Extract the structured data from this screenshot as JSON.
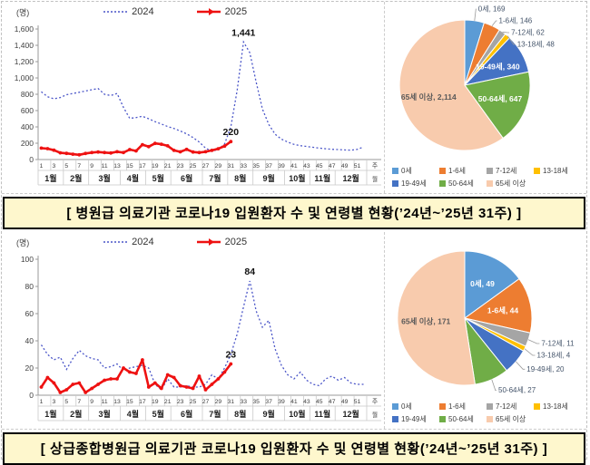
{
  "panels": [
    {
      "caption": "[ 병원급 의료기관 코로나19 입원환자 수 및 연령별 현황(’24년~’25년 31주) ]"
    },
    {
      "caption": "[ 상급종합병원급 의료기관 코로나19 입원환자 수 및 연령별 현황(’24년~’25년 31주) ]"
    }
  ],
  "chart_data": [
    {
      "type": "line",
      "title": "병원급 의료기관 코로나19 입원환자 수",
      "unit_label": "(명)",
      "week_axis_suffix": "주",
      "month_axis_suffix": "월",
      "ylim": [
        0,
        1600
      ],
      "yticks": [
        0,
        200,
        400,
        600,
        800,
        1000,
        1200,
        1400,
        1600
      ],
      "week_ticks": [
        1,
        3,
        5,
        7,
        9,
        11,
        13,
        15,
        17,
        19,
        21,
        23,
        25,
        27,
        29,
        31,
        33,
        35,
        37,
        39,
        41,
        43,
        45,
        47,
        49,
        51
      ],
      "months": [
        "1월",
        "2월",
        "3월",
        "4월",
        "5월",
        "6월",
        "7월",
        "8월",
        "9월",
        "10월",
        "11월",
        "12월"
      ],
      "weeks_per_month": [
        4,
        4,
        5,
        4,
        4,
        5,
        4,
        4,
        5,
        4,
        4,
        5
      ],
      "grid": false,
      "legend_position": "top",
      "series": [
        {
          "name": "2024",
          "color": "#4A55C8",
          "style": "dotted",
          "values": [
            830,
            770,
            745,
            760,
            795,
            810,
            825,
            840,
            855,
            870,
            800,
            785,
            810,
            640,
            505,
            515,
            530,
            500,
            465,
            435,
            405,
            380,
            350,
            315,
            270,
            215,
            140,
            100,
            125,
            190,
            400,
            850,
            1441,
            1310,
            950,
            620,
            430,
            310,
            250,
            215,
            185,
            170,
            160,
            150,
            140,
            132,
            126,
            122,
            118,
            115,
            125,
            155
          ]
        },
        {
          "name": "2025",
          "color": "#EE1111",
          "style": "solid",
          "values": [
            140,
            133,
            115,
            82,
            76,
            66,
            58,
            74,
            86,
            92,
            86,
            80,
            96,
            86,
            122,
            106,
            182,
            158,
            198,
            188,
            168,
            112,
            94,
            124,
            92,
            86,
            96,
            112,
            132,
            164,
            220
          ]
        }
      ],
      "annotations": [
        {
          "series": 0,
          "week": 33,
          "value": 1441,
          "text": "1,441"
        },
        {
          "series": 1,
          "week": 31,
          "value": 220,
          "text": "220"
        }
      ]
    },
    {
      "type": "pie",
      "title": "병원급 의료기관 연령별 현황",
      "legend_position": "bottom",
      "slices": [
        {
          "label": "0세",
          "value": 169,
          "color": "#5B9BD5",
          "label_inside": false,
          "label_color": "#44546A"
        },
        {
          "label": "1-6세",
          "value": 146,
          "color": "#ED7D31",
          "label_inside": false,
          "label_color": "#44546A"
        },
        {
          "label": "7-12세",
          "value": 62,
          "color": "#A5A5A5",
          "label_inside": false,
          "label_color": "#44546A"
        },
        {
          "label": "13-18세",
          "value": 48,
          "color": "#FFC000",
          "label_inside": false,
          "label_color": "#44546A"
        },
        {
          "label": "19-49세",
          "value": 340,
          "color": "#4472C4",
          "label_inside": true,
          "label_color": "#FFFFFF"
        },
        {
          "label": "50-64세",
          "value": 647,
          "color": "#70AD47",
          "label_inside": true,
          "label_color": "#FFFFFF"
        },
        {
          "label": "65세 이상",
          "value": 2114,
          "color": "#F8CBAD",
          "label_inside": true,
          "label_color": "#595959"
        }
      ]
    },
    {
      "type": "line",
      "title": "상급종합병원급 의료기관 코로나19 입원환자 수",
      "unit_label": "(명)",
      "week_axis_suffix": "주",
      "month_axis_suffix": "월",
      "ylim": [
        0,
        100
      ],
      "yticks": [
        0,
        20,
        40,
        60,
        80,
        100
      ],
      "week_ticks": [
        1,
        3,
        5,
        7,
        9,
        11,
        13,
        15,
        17,
        19,
        21,
        23,
        25,
        27,
        29,
        31,
        33,
        35,
        37,
        39,
        41,
        43,
        45,
        47,
        49,
        51
      ],
      "months": [
        "1월",
        "2월",
        "3월",
        "4월",
        "5월",
        "6월",
        "7월",
        "8월",
        "9월",
        "10월",
        "11월",
        "12월"
      ],
      "weeks_per_month": [
        4,
        4,
        5,
        4,
        4,
        5,
        4,
        4,
        5,
        4,
        4,
        5
      ],
      "grid": false,
      "legend_position": "top",
      "series": [
        {
          "name": "2024",
          "color": "#4A55C8",
          "style": "dotted",
          "values": [
            37,
            30,
            26,
            28,
            19,
            27,
            33,
            29,
            27,
            26,
            20,
            21,
            23,
            18,
            20,
            21,
            22,
            20,
            8,
            4,
            12,
            6,
            6,
            7,
            6,
            6,
            8,
            15,
            12,
            20,
            30,
            45,
            65,
            84,
            62,
            50,
            55,
            34,
            22,
            15,
            12,
            17,
            11,
            8,
            7,
            12,
            14,
            11,
            13,
            9,
            8,
            8
          ]
        },
        {
          "name": "2025",
          "color": "#EE1111",
          "style": "solid",
          "values": [
            6,
            13,
            9,
            2,
            4,
            8,
            9,
            2,
            5,
            8,
            11,
            12,
            12,
            20,
            17,
            16,
            26,
            6,
            9,
            5,
            15,
            13,
            7,
            6,
            5,
            14,
            4,
            8,
            12,
            17,
            23
          ]
        }
      ],
      "annotations": [
        {
          "series": 0,
          "week": 34,
          "value": 84,
          "text": "84"
        },
        {
          "series": 1,
          "week": 31,
          "value": 23,
          "text": "23"
        }
      ]
    },
    {
      "type": "pie",
      "title": "상급종합병원급 의료기관 연령별 현황",
      "legend_position": "bottom",
      "slices": [
        {
          "label": "0세",
          "value": 49,
          "color": "#5B9BD5",
          "label_inside": true,
          "label_color": "#FFFFFF"
        },
        {
          "label": "1-6세",
          "value": 44,
          "color": "#ED7D31",
          "label_inside": true,
          "label_color": "#FFFFFF"
        },
        {
          "label": "7-12세",
          "value": 11,
          "color": "#A5A5A5",
          "label_inside": false,
          "label_color": "#44546A"
        },
        {
          "label": "13-18세",
          "value": 4,
          "color": "#FFC000",
          "label_inside": false,
          "label_color": "#44546A"
        },
        {
          "label": "19-49세",
          "value": 20,
          "color": "#4472C4",
          "label_inside": false,
          "label_color": "#44546A"
        },
        {
          "label": "50-64세",
          "value": 27,
          "color": "#70AD47",
          "label_inside": false,
          "label_color": "#44546A"
        },
        {
          "label": "65세 이상",
          "value": 171,
          "color": "#F8CBAD",
          "label_inside": true,
          "label_color": "#595959"
        }
      ]
    }
  ]
}
